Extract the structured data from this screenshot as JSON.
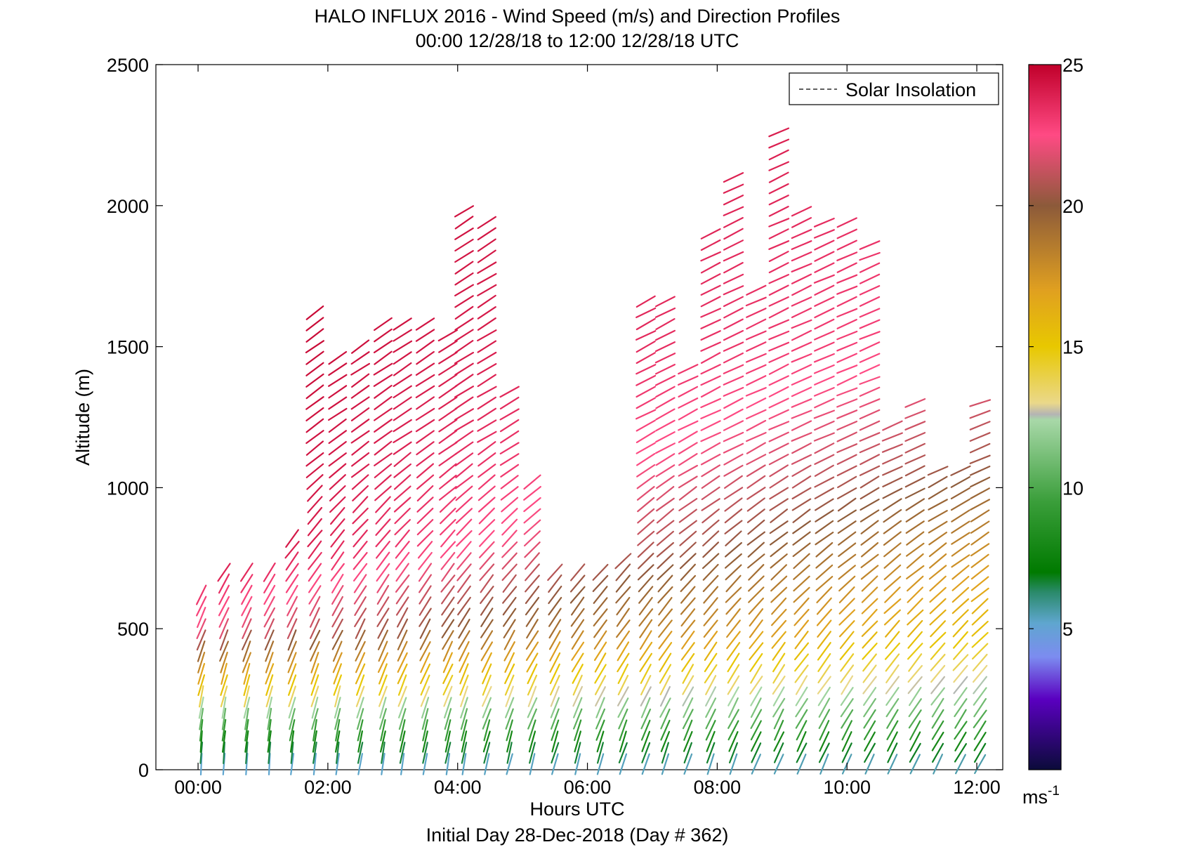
{
  "chart_data": {
    "type": "wind-barb-profile",
    "title": "HALO INFLUX 2016 - Wind Speed (m/s) and Direction Profiles",
    "subtitle": "00:00 12/28/18 to 12:00 12/28/18  UTC",
    "xlabel": "Hours UTC",
    "ylabel": "Altitude (m)",
    "footer": "Initial Day 28-Dec-2018 (Day # 362)",
    "xlim_hours": [
      -0.65,
      12.4
    ],
    "ylim": [
      0,
      2500
    ],
    "x_ticks": [
      {
        "value": 0,
        "label": "00:00"
      },
      {
        "value": 2,
        "label": "02:00"
      },
      {
        "value": 4,
        "label": "04:00"
      },
      {
        "value": 6,
        "label": "06:00"
      },
      {
        "value": 8,
        "label": "08:00"
      },
      {
        "value": 10,
        "label": "10:00"
      },
      {
        "value": 12,
        "label": "12:00"
      }
    ],
    "y_ticks": [
      {
        "value": 0,
        "label": "0"
      },
      {
        "value": 500,
        "label": "500"
      },
      {
        "value": 1000,
        "label": "1000"
      },
      {
        "value": 1500,
        "label": "1500"
      },
      {
        "value": 2000,
        "label": "2000"
      },
      {
        "value": 2500,
        "label": "2500"
      }
    ],
    "legend": {
      "position": "top-right",
      "entries": [
        "Solar Insolation"
      ]
    },
    "colorbar": {
      "range": [
        0,
        25
      ],
      "ticks": [
        {
          "value": 5,
          "label": "5"
        },
        {
          "value": 10,
          "label": "10"
        },
        {
          "value": 15,
          "label": "15"
        },
        {
          "value": 20,
          "label": "20"
        },
        {
          "value": 25,
          "label": "25"
        }
      ],
      "unit_label": "ms",
      "unit_exponent": "-1",
      "stops": [
        {
          "v": 0,
          "color": "#0b0b3a"
        },
        {
          "v": 2.5,
          "color": "#5a00c0"
        },
        {
          "v": 4,
          "color": "#7c8cf0"
        },
        {
          "v": 5.2,
          "color": "#5fa6cf"
        },
        {
          "v": 6.3,
          "color": "#2a8a6a"
        },
        {
          "v": 7,
          "color": "#007a00"
        },
        {
          "v": 9.5,
          "color": "#3a9e3a"
        },
        {
          "v": 12.4,
          "color": "#a8d8a8"
        },
        {
          "v": 12.6,
          "color": "#b4b4b4"
        },
        {
          "v": 13,
          "color": "#ead88a"
        },
        {
          "v": 15,
          "color": "#e8c800"
        },
        {
          "v": 17,
          "color": "#e0a020"
        },
        {
          "v": 20,
          "color": "#8c5a3a"
        },
        {
          "v": 22.5,
          "color": "#ff4a84"
        },
        {
          "v": 25,
          "color": "#c0002a"
        }
      ]
    },
    "profile_columns": [
      {
        "t": 0.05,
        "top": 620
      },
      {
        "t": 0.4,
        "top": 700
      },
      {
        "t": 0.75,
        "top": 700
      },
      {
        "t": 1.1,
        "top": 700
      },
      {
        "t": 1.45,
        "top": 840
      },
      {
        "t": 1.8,
        "top": 1620
      },
      {
        "t": 2.15,
        "top": 1460
      },
      {
        "t": 2.5,
        "top": 1500
      },
      {
        "t": 2.85,
        "top": 1580
      },
      {
        "t": 3.15,
        "top": 1600
      },
      {
        "t": 3.5,
        "top": 1580
      },
      {
        "t": 3.85,
        "top": 1560
      },
      {
        "t": 4.1,
        "top": 2000
      },
      {
        "t": 4.45,
        "top": 1960
      },
      {
        "t": 4.8,
        "top": 1340
      },
      {
        "t": 5.15,
        "top": 1040
      },
      {
        "t": 5.5,
        "top": 700
      },
      {
        "t": 5.85,
        "top": 700
      },
      {
        "t": 6.2,
        "top": 700
      },
      {
        "t": 6.55,
        "top": 740
      },
      {
        "t": 6.9,
        "top": 1660
      },
      {
        "t": 7.2,
        "top": 1660
      },
      {
        "t": 7.55,
        "top": 1440
      },
      {
        "t": 7.9,
        "top": 1920
      },
      {
        "t": 8.25,
        "top": 2120
      },
      {
        "t": 8.6,
        "top": 1700
      },
      {
        "t": 8.95,
        "top": 2280
      },
      {
        "t": 9.3,
        "top": 2000
      },
      {
        "t": 9.65,
        "top": 1960
      },
      {
        "t": 10.0,
        "top": 1960
      },
      {
        "t": 10.35,
        "top": 1880
      },
      {
        "t": 10.7,
        "top": 1240
      },
      {
        "t": 11.05,
        "top": 1320
      },
      {
        "t": 11.4,
        "top": 1060
      },
      {
        "t": 11.75,
        "top": 1080
      },
      {
        "t": 12.05,
        "top": 1320
      }
    ],
    "speed_profile_ms": [
      {
        "alt": 0,
        "early": 4.5,
        "late": 5
      },
      {
        "alt": 150,
        "early": 9.5,
        "late": 9.5
      },
      {
        "alt": 300,
        "early": 15.5,
        "late": 12.5
      },
      {
        "alt": 500,
        "early": 22,
        "late": 15.5
      },
      {
        "alt": 800,
        "early": 25,
        "late": 18
      },
      {
        "alt": 1100,
        "early": 25,
        "late": 20.5
      },
      {
        "alt": 1500,
        "early": 25,
        "late": 22.5
      },
      {
        "alt": 2500,
        "early": 25,
        "late": 24
      }
    ]
  }
}
